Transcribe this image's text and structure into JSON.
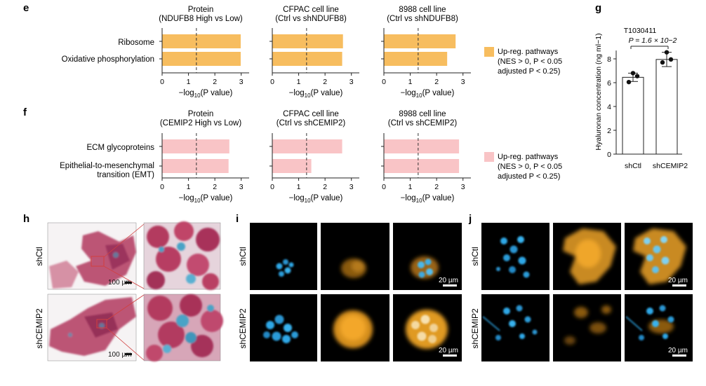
{
  "colors": {
    "up_orange": "#f7bd5f",
    "up_pink": "#f9c4c6",
    "axis": "#222222",
    "cyan": "#2fa7e6",
    "amber": "#f3a72a",
    "he_red": "#b33a5f",
    "he_blue": "#4aa3c6",
    "dark_bg": "#000000"
  },
  "panels": {
    "e": {
      "letter": "e",
      "categories": [
        "Ribosome",
        "Oxidative phosphorylation"
      ],
      "legend": [
        "Up-reg. pathways",
        "(NES > 0, P < 0.05",
        "adjusted P < 0.25)"
      ],
      "xlabel": "−log10(P value)",
      "threshold": 1.3,
      "xlim": [
        0,
        3.3
      ],
      "ticks": [
        0,
        1,
        2,
        3
      ],
      "subplots": [
        {
          "title": [
            "Protein",
            "(NDUFB8 High vs Low)"
          ],
          "values": [
            2.98,
            2.98
          ]
        },
        {
          "title": [
            "CFPAC cell line",
            "(Ctrl vs shNDUFB8)"
          ],
          "values": [
            2.68,
            2.65
          ]
        },
        {
          "title": [
            "8988 cell line",
            "(Ctrl vs shNDUFB8)"
          ],
          "values": [
            2.72,
            2.4
          ]
        }
      ]
    },
    "f": {
      "letter": "f",
      "categories": [
        "ECM glycoproteins",
        "Epithelial-to-mesenchymal",
        "transition (EMT)"
      ],
      "legend": [
        "Up-reg. pathways",
        "(NES > 0, P < 0.05",
        "adjusted P < 0.25)"
      ],
      "xlabel": "−log10(P value)",
      "threshold": 1.3,
      "xlim": [
        0,
        3.3
      ],
      "ticks": [
        0,
        1,
        2,
        3
      ],
      "subplots": [
        {
          "title": [
            "Protein",
            "(CEMIP2 High vs Low)"
          ],
          "values": [
            2.55,
            2.52
          ]
        },
        {
          "title": [
            "CFPAC cell line",
            "(Ctrl vs shCEMIP2)"
          ],
          "values": [
            2.65,
            1.48
          ]
        },
        {
          "title": [
            "8988 cell line",
            "(Ctrl vs shCEMIP2)"
          ],
          "values": [
            2.85,
            2.85
          ]
        }
      ]
    },
    "g": {
      "letter": "g",
      "title": "T1030411",
      "pvalue": "P = 1.6 × 10−2",
      "ylabel": "Hyaluronan concentration (ng ml−1)",
      "ylim": [
        0,
        10
      ],
      "ticks": [
        0,
        2,
        4,
        6,
        8
      ],
      "categories": [
        "shCtl",
        "shCEMIP2"
      ],
      "means": [
        6.45,
        7.95
      ],
      "sd": [
        0.35,
        0.6
      ],
      "points": [
        [
          6.8,
          6.55,
          6.05
        ],
        [
          8.55,
          7.95,
          7.7
        ]
      ]
    },
    "h": {
      "letter": "h",
      "rows": [
        "shCtl",
        "shCEMIP2"
      ],
      "scale": "100 µm"
    },
    "i": {
      "letter": "i",
      "rows": [
        "shCtl",
        "shCEMIP2"
      ],
      "scale": "20 µm"
    },
    "j": {
      "letter": "j",
      "rows": [
        "shCtl",
        "shCEMIP2"
      ],
      "scale": "20 µm"
    }
  },
  "chart_data": [
    {
      "type": "bar",
      "orientation": "horizontal",
      "title": "Protein (NDUFB8 High vs Low)",
      "categories": [
        "Ribosome",
        "Oxidative phosphorylation"
      ],
      "values": [
        2.98,
        2.98
      ],
      "xlabel": "−log10(P value)",
      "xlim": [
        0,
        3.3
      ]
    },
    {
      "type": "bar",
      "orientation": "horizontal",
      "title": "CFPAC cell line (Ctrl vs shNDUFB8)",
      "categories": [
        "Ribosome",
        "Oxidative phosphorylation"
      ],
      "values": [
        2.68,
        2.65
      ],
      "xlabel": "−log10(P value)",
      "xlim": [
        0,
        3.3
      ]
    },
    {
      "type": "bar",
      "orientation": "horizontal",
      "title": "8988 cell line (Ctrl vs shNDUFB8)",
      "categories": [
        "Ribosome",
        "Oxidative phosphorylation"
      ],
      "values": [
        2.72,
        2.4
      ],
      "xlabel": "−log10(P value)",
      "xlim": [
        0,
        3.3
      ]
    },
    {
      "type": "bar",
      "orientation": "horizontal",
      "title": "Protein (CEMIP2 High vs Low)",
      "categories": [
        "ECM glycoproteins",
        "Epithelial-to-mesenchymal transition (EMT)"
      ],
      "values": [
        2.55,
        2.52
      ],
      "xlabel": "−log10(P value)",
      "xlim": [
        0,
        3.3
      ]
    },
    {
      "type": "bar",
      "orientation": "horizontal",
      "title": "CFPAC cell line (Ctrl vs shCEMIP2)",
      "categories": [
        "ECM glycoproteins",
        "Epithelial-to-mesenchymal transition (EMT)"
      ],
      "values": [
        2.65,
        1.48
      ],
      "xlabel": "−log10(P value)",
      "xlim": [
        0,
        3.3
      ]
    },
    {
      "type": "bar",
      "orientation": "horizontal",
      "title": "8988 cell line (Ctrl vs shCEMIP2)",
      "categories": [
        "ECM glycoproteins",
        "Epithelial-to-mesenchymal transition (EMT)"
      ],
      "values": [
        2.85,
        2.85
      ],
      "xlabel": "−log10(P value)",
      "xlim": [
        0,
        3.3
      ]
    },
    {
      "type": "bar",
      "title": "T1030411",
      "categories": [
        "shCtl",
        "shCEMIP2"
      ],
      "values": [
        6.45,
        7.95
      ],
      "points": [
        [
          6.8,
          6.55,
          6.05
        ],
        [
          8.55,
          7.95,
          7.7
        ]
      ],
      "ylabel": "Hyaluronan concentration (ng ml−1)",
      "ylim": [
        0,
        10
      ],
      "annotation": "P = 1.6 × 10−2"
    }
  ]
}
